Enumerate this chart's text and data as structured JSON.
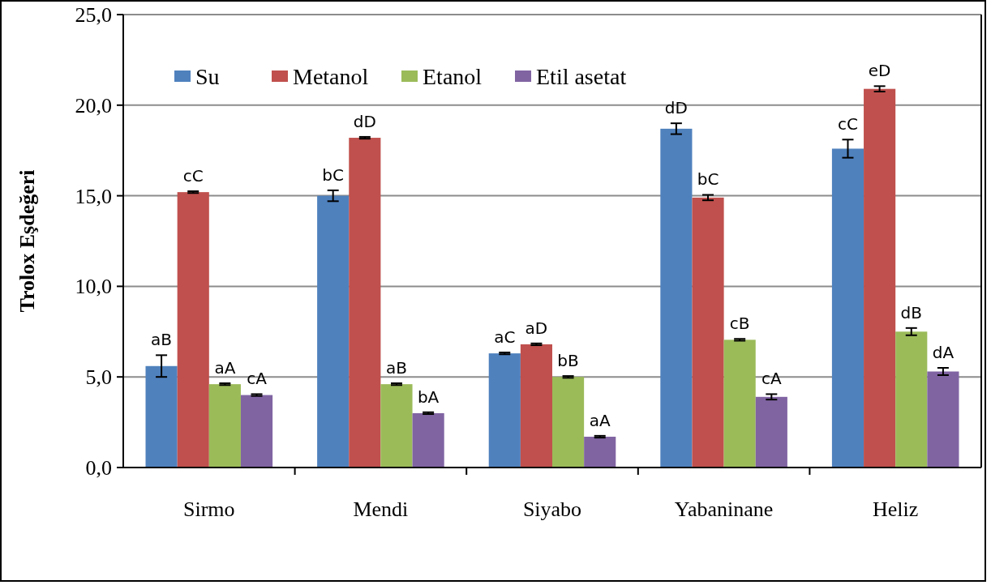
{
  "chart_data": {
    "type": "bar",
    "ylabel": "Trolox Eşdeğeri",
    "categories": [
      "Sirmo",
      "Mendi",
      "Siyabo",
      "Yabaninane",
      "Heliz"
    ],
    "series": [
      {
        "name": "Su",
        "color": "#4f81bd",
        "values": [
          5.6,
          15.0,
          6.3,
          18.7,
          17.6
        ],
        "errors": [
          0.6,
          0.3,
          0.05,
          0.3,
          0.5
        ],
        "value_labels": [
          "aB",
          "bC",
          "aC",
          "dD",
          "cC"
        ]
      },
      {
        "name": "Metanol",
        "color": "#c0504d",
        "values": [
          15.2,
          18.2,
          6.8,
          14.9,
          20.9
        ],
        "errors": [
          0.05,
          0.05,
          0.05,
          0.15,
          0.15
        ],
        "value_labels": [
          "cC",
          "dD",
          "aD",
          "bC",
          "eD"
        ]
      },
      {
        "name": "Etanol",
        "color": "#9bbb59",
        "values": [
          4.6,
          4.6,
          5.0,
          7.05,
          7.5
        ],
        "errors": [
          0.05,
          0.05,
          0.05,
          0.05,
          0.2
        ],
        "value_labels": [
          "aA",
          "aB",
          "bB",
          "cB",
          "dB"
        ]
      },
      {
        "name": "Etil asetat",
        "color": "#8064a2",
        "values": [
          4.0,
          3.0,
          1.7,
          3.9,
          5.3
        ],
        "errors": [
          0.05,
          0.05,
          0.05,
          0.15,
          0.2
        ],
        "value_labels": [
          "cA",
          "bA",
          "aA",
          "cA",
          "dA"
        ]
      }
    ],
    "ylim": [
      0,
      25
    ],
    "yticks": [
      {
        "value": 0,
        "label": "0,0"
      },
      {
        "value": 5,
        "label": "5,0"
      },
      {
        "value": 10,
        "label": "10,0"
      },
      {
        "value": 15,
        "label": "15,0"
      },
      {
        "value": 20,
        "label": "20,0"
      },
      {
        "value": 25,
        "label": "25,0"
      }
    ],
    "grid": "y",
    "legend": "top left"
  }
}
